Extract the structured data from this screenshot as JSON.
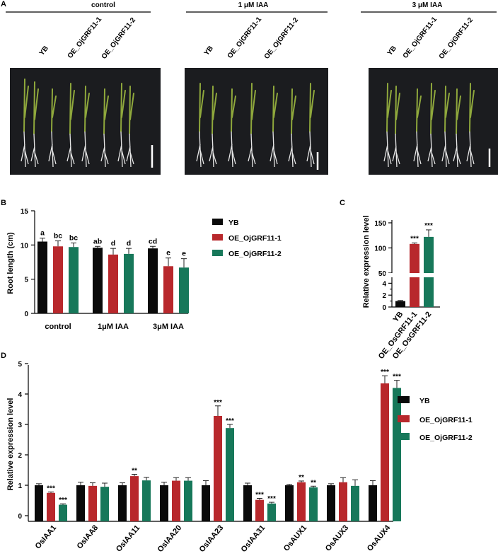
{
  "panels": {
    "A": "A",
    "B": "B",
    "C": "C",
    "D": "D"
  },
  "colors": {
    "YB": "#0a0a0a",
    "OE1": "#b8282c",
    "OE2": "#17785a",
    "photo_bg": "#1b1c1f",
    "leaf": "#8fa83c",
    "root": "#e8e8e8"
  },
  "photos": [
    {
      "condition": "control",
      "labels": [
        "YB",
        "OE_OjGRF11-1",
        "OE_OjGRF11-2"
      ]
    },
    {
      "condition": "1 μM IAA",
      "labels": [
        "YB",
        "OE_OjGRF11-1",
        "OE_OjGRF11-2"
      ]
    },
    {
      "condition": "3 μM IAA",
      "labels": [
        "YB",
        "OE_OjGRF11-1",
        "OE_OjGRF11-2"
      ]
    }
  ],
  "legend": [
    "YB",
    "OE_OjGRF11-1",
    "OE_OjGRF11-2"
  ],
  "chart_data": [
    {
      "panel": "B",
      "type": "bar",
      "ylabel": "Root length (cm)",
      "ylim": [
        0,
        15
      ],
      "yticks": [
        0,
        5,
        10,
        15
      ],
      "categories": [
        "control",
        "1μM IAA",
        "3μM IAA"
      ],
      "series": [
        {
          "name": "YB",
          "values": [
            10.5,
            9.6,
            9.5
          ],
          "errors": [
            0.5,
            0.2,
            0.3
          ],
          "letters": [
            "a",
            "ab",
            "cd"
          ]
        },
        {
          "name": "OE_OjGRF11-1",
          "values": [
            9.8,
            8.6,
            6.9
          ],
          "errors": [
            0.8,
            0.9,
            1.2
          ],
          "letters": [
            "bc",
            "d",
            "e"
          ]
        },
        {
          "name": "OE_OjGRF11-2",
          "values": [
            9.7,
            8.7,
            6.7
          ],
          "errors": [
            0.6,
            0.8,
            1.3
          ],
          "letters": [
            "bc",
            "d",
            "e"
          ]
        }
      ]
    },
    {
      "panel": "C",
      "type": "bar",
      "ylabel": "Relative expression level",
      "categories": [
        "YB",
        "OE_OsGRF11-1",
        "OE_OsGRF11-2"
      ],
      "yticks": [
        0,
        2,
        4,
        50,
        100,
        150
      ],
      "values": [
        1.0,
        108,
        122
      ],
      "errors": [
        0.1,
        2,
        14
      ],
      "stars": [
        "",
        "***",
        "***"
      ]
    },
    {
      "panel": "D",
      "type": "bar",
      "ylabel": "Relative expression level",
      "ylim": [
        0,
        5.5
      ],
      "yticks": [
        0,
        1,
        2,
        3,
        4,
        5
      ],
      "categories": [
        "OsIAA1",
        "OsIAA8",
        "OsIAA11",
        "OsIAA20",
        "OsIAA23",
        "OsIAA31",
        "OsAUX1",
        "OsAUX3",
        "OsAUX4"
      ],
      "series": [
        {
          "name": "YB",
          "values": [
            1.0,
            1.0,
            1.0,
            1.0,
            1.0,
            1.0,
            1.0,
            1.0,
            1.0
          ],
          "errors": [
            0.05,
            0.1,
            0.08,
            0.1,
            0.15,
            0.07,
            0.03,
            0.05,
            0.15
          ]
        },
        {
          "name": "OE_OjGRF11-1",
          "values": [
            0.75,
            0.98,
            1.3,
            1.15,
            3.28,
            0.52,
            1.1,
            1.1,
            4.35
          ],
          "errors": [
            0.03,
            0.1,
            0.06,
            0.1,
            0.33,
            0.05,
            0.04,
            0.15,
            0.25
          ]
        },
        {
          "name": "OE_OjGRF11-2",
          "values": [
            0.36,
            0.95,
            1.16,
            1.15,
            2.88,
            0.4,
            0.93,
            0.98,
            4.2
          ],
          "errors": [
            0.03,
            0.12,
            0.1,
            0.1,
            0.12,
            0.04,
            0.04,
            0.2,
            0.25
          ]
        }
      ],
      "stars": [
        [
          "",
          "***",
          "***"
        ],
        [
          "",
          "",
          ""
        ],
        [
          "",
          "**",
          ""
        ],
        [
          "",
          "",
          ""
        ],
        [
          "",
          "***",
          "***"
        ],
        [
          "",
          "***",
          "***"
        ],
        [
          "",
          "**",
          "**"
        ],
        [
          "",
          "",
          ""
        ],
        [
          "",
          "***",
          "***"
        ]
      ]
    }
  ]
}
